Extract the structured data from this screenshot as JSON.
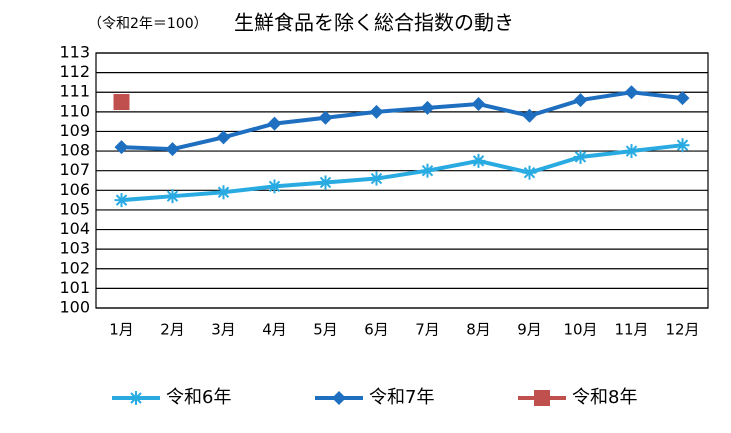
{
  "chart_data": {
    "type": "line",
    "subtitle": "（令和2年＝100）",
    "title": "生鮮食品を除く総合指数の動き",
    "categories": [
      "1月",
      "2月",
      "3月",
      "4月",
      "5月",
      "6月",
      "7月",
      "8月",
      "9月",
      "10月",
      "11月",
      "12月"
    ],
    "series": [
      {
        "name": "令和6年",
        "color": "#29abe2",
        "marker": "asterisk",
        "values": [
          105.5,
          105.7,
          105.9,
          106.2,
          106.4,
          106.6,
          107.0,
          107.5,
          106.9,
          107.7,
          108.0,
          108.3
        ]
      },
      {
        "name": "令和7年",
        "color": "#1f6fc0",
        "marker": "diamond",
        "values": [
          108.2,
          108.1,
          108.7,
          109.4,
          109.7,
          110.0,
          110.2,
          110.4,
          109.8,
          110.6,
          111.0,
          110.7
        ]
      },
      {
        "name": "令和8年",
        "color": "#c0504d",
        "marker": "square",
        "values": [
          110.5,
          null,
          null,
          null,
          null,
          null,
          null,
          null,
          null,
          null,
          null,
          null
        ]
      }
    ],
    "ylim": [
      100,
      113
    ],
    "yticks": [
      100,
      101,
      102,
      103,
      104,
      105,
      106,
      107,
      108,
      109,
      110,
      111,
      112,
      113
    ],
    "grid": true,
    "legend": "bottom"
  }
}
